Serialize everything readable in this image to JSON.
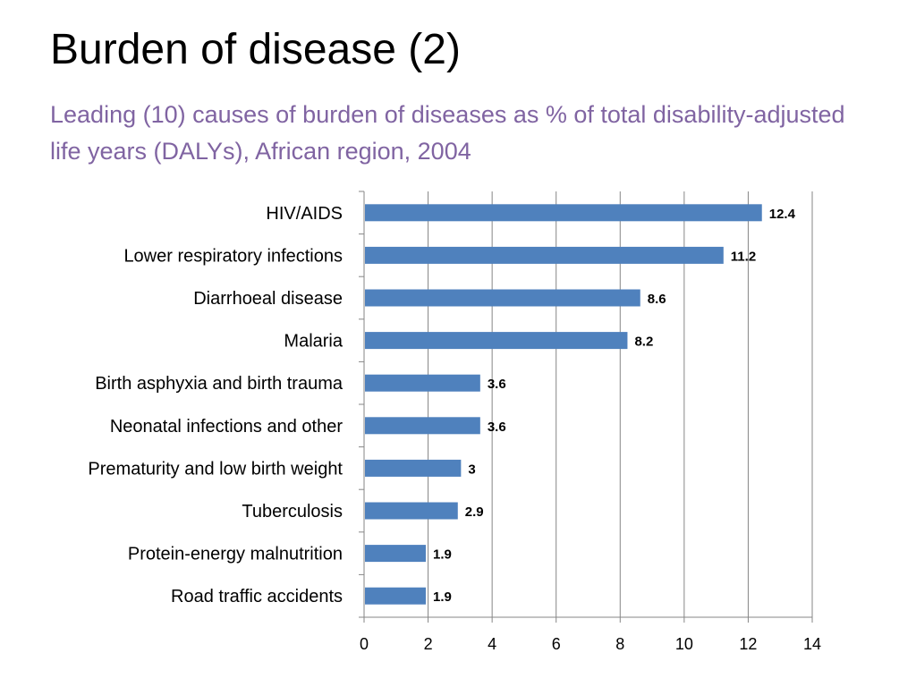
{
  "slide": {
    "title": "Burden of disease (2)",
    "subtitle": "Leading (10) causes of burden of diseases as % of total disability-adjusted life years (DALYs), African region, 2004"
  },
  "chart_data": {
    "type": "bar",
    "orientation": "horizontal",
    "categories": [
      "HIV/AIDS",
      "Lower respiratory infections",
      "Diarrhoeal disease",
      "Malaria",
      "Birth asphyxia and birth trauma",
      "Neonatal infections and other",
      "Prematurity and low birth weight",
      "Tuberculosis",
      "Protein-energy malnutrition",
      "Road traffic accidents"
    ],
    "values": [
      12.4,
      11.2,
      8.6,
      8.2,
      3.6,
      3.6,
      3,
      2.9,
      1.9,
      1.9
    ],
    "data_labels": [
      "12.4",
      "11.2",
      "8.6",
      "8.2",
      "3.6",
      "3.6",
      "3",
      "2.9",
      "1.9",
      "1.9"
    ],
    "xticks": [
      "0",
      "2",
      "4",
      "6",
      "8",
      "10",
      "12",
      "14"
    ],
    "xlim": [
      0,
      14
    ],
    "grid": true,
    "legend": "none",
    "colors": {
      "bar": "#4f81bd",
      "gridline": "#868686",
      "axis": "#868686",
      "subtitle": "#8064a2"
    }
  }
}
